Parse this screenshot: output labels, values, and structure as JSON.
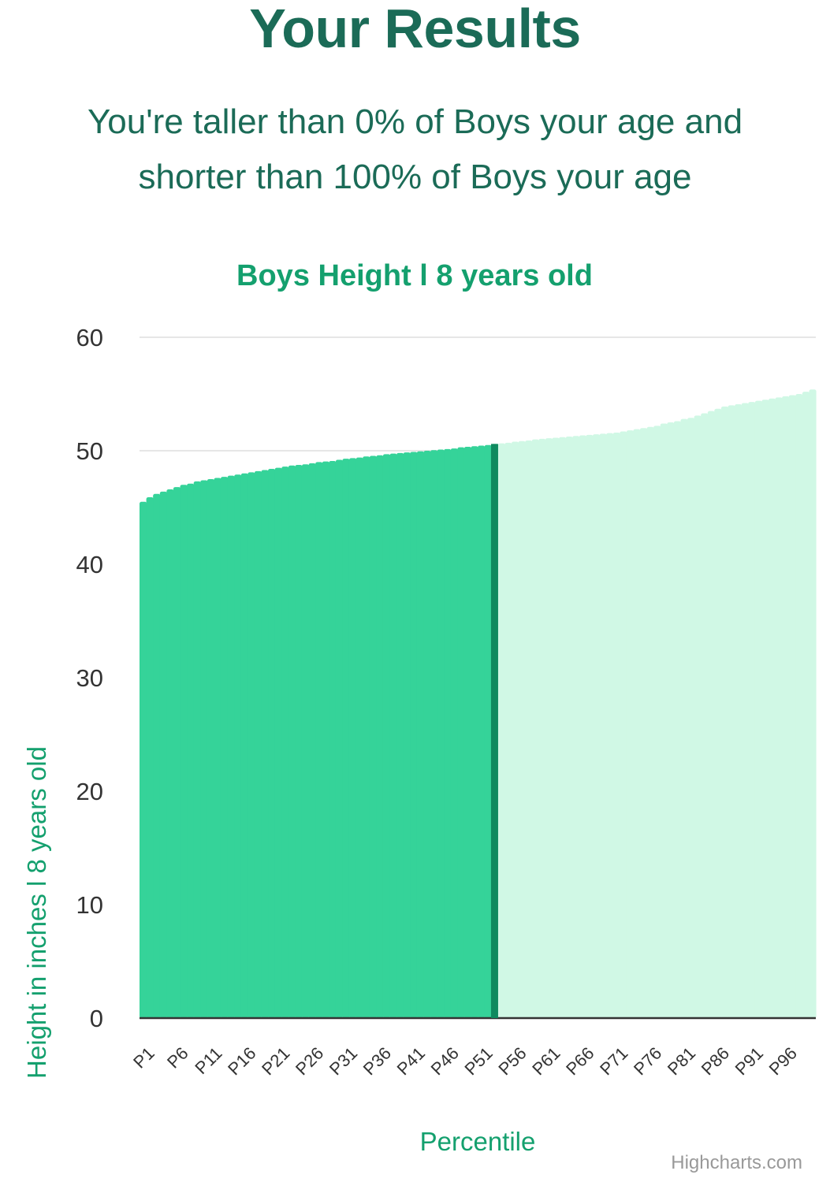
{
  "header": {
    "title": "Your Results",
    "line1": "You're taller than 0% of Boys your age and",
    "line2": "shorter than 100% of Boys your age"
  },
  "colors": {
    "brand_dark": "#1b6b57",
    "accent": "#14a06e",
    "below_fill": "#35d399",
    "above_fill": "#d0f8e5",
    "marker": "#0f8a5f"
  },
  "chart_data": {
    "type": "area",
    "title": "Boys Height l 8 years old",
    "xlabel": "Percentile",
    "ylabel": "Height in inches l 8 years old",
    "credits": "Highcharts.com",
    "ylim": [
      0,
      60
    ],
    "yticks": [
      "0",
      "10",
      "20",
      "30",
      "40",
      "50",
      "60"
    ],
    "grid": true,
    "legend": "none",
    "x_tick_labels": [
      "P1",
      "P6",
      "P11",
      "P16",
      "P21",
      "P26",
      "P31",
      "P36",
      "P41",
      "P46",
      "P51",
      "P56",
      "P61",
      "P66",
      "P71",
      "P76",
      "P81",
      "P86",
      "P91",
      "P96"
    ],
    "highlight_category": "P53",
    "x": [
      "P1",
      "P2",
      "P3",
      "P4",
      "P5",
      "P6",
      "P7",
      "P8",
      "P9",
      "P10",
      "P11",
      "P12",
      "P13",
      "P14",
      "P15",
      "P16",
      "P17",
      "P18",
      "P19",
      "P20",
      "P21",
      "P22",
      "P23",
      "P24",
      "P25",
      "P26",
      "P27",
      "P28",
      "P29",
      "P30",
      "P31",
      "P32",
      "P33",
      "P34",
      "P35",
      "P36",
      "P37",
      "P38",
      "P39",
      "P40",
      "P41",
      "P42",
      "P43",
      "P44",
      "P45",
      "P46",
      "P47",
      "P48",
      "P49",
      "P50",
      "P51",
      "P52",
      "P53",
      "P54",
      "P55",
      "P56",
      "P57",
      "P58",
      "P59",
      "P60",
      "P61",
      "P62",
      "P63",
      "P64",
      "P65",
      "P66",
      "P67",
      "P68",
      "P69",
      "P70",
      "P71",
      "P72",
      "P73",
      "P74",
      "P75",
      "P76",
      "P77",
      "P78",
      "P79",
      "P80",
      "P81",
      "P82",
      "P83",
      "P84",
      "P85",
      "P86",
      "P87",
      "P88",
      "P89",
      "P90",
      "P91",
      "P92",
      "P93",
      "P94",
      "P95",
      "P96",
      "P97",
      "P98",
      "P99",
      "P100"
    ],
    "values": [
      45.5,
      45.9,
      46.2,
      46.4,
      46.6,
      46.8,
      47.0,
      47.1,
      47.3,
      47.4,
      47.5,
      47.6,
      47.7,
      47.8,
      47.9,
      48.0,
      48.1,
      48.2,
      48.3,
      48.4,
      48.5,
      48.6,
      48.7,
      48.75,
      48.8,
      48.9,
      49.0,
      49.05,
      49.1,
      49.2,
      49.3,
      49.35,
      49.4,
      49.5,
      49.55,
      49.6,
      49.7,
      49.75,
      49.8,
      49.85,
      49.9,
      49.95,
      50.0,
      50.05,
      50.1,
      50.15,
      50.2,
      50.3,
      50.35,
      50.4,
      50.45,
      50.5,
      50.6,
      50.65,
      50.7,
      50.8,
      50.85,
      50.9,
      51.0,
      51.05,
      51.1,
      51.15,
      51.2,
      51.25,
      51.3,
      51.35,
      51.4,
      51.45,
      51.5,
      51.55,
      51.6,
      51.7,
      51.8,
      51.9,
      52.0,
      52.1,
      52.2,
      52.4,
      52.5,
      52.6,
      52.8,
      52.9,
      53.1,
      53.3,
      53.5,
      53.7,
      53.9,
      54.0,
      54.1,
      54.2,
      54.3,
      54.4,
      54.5,
      54.6,
      54.7,
      54.8,
      54.9,
      55.0,
      55.2,
      55.4
    ]
  }
}
